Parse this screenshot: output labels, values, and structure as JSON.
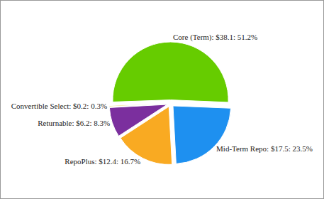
{
  "chart_data": {
    "type": "pie",
    "categories": [
      "Core (Term)",
      "Mid-Term Repo",
      "RepoPlus",
      "Returnable",
      "Convertible Select"
    ],
    "values": [
      51.2,
      23.5,
      16.7,
      8.3,
      0.3
    ],
    "value_labels": [
      "Core (Term): $38.1: 51.2%",
      "Mid-Term Repo: $17.5: 23.5%",
      "RepoPlus: $12.4: 16.7%",
      "Returnable: $6.2: 8.3%",
      "Convertible Select: $0.2: 0.3%"
    ],
    "colors": [
      "#66cc00",
      "#1e90f0",
      "#f9aa22",
      "#7b2f9e",
      "#e6d24a"
    ],
    "data_labels": true
  }
}
